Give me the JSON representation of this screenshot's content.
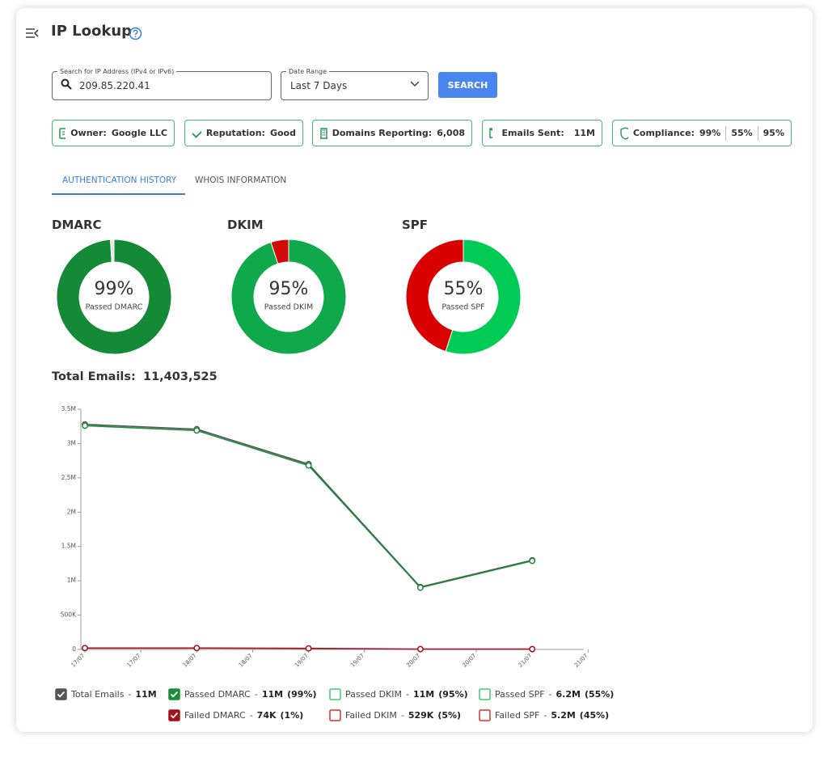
{
  "header": {
    "title": "IP Lookup"
  },
  "search": {
    "ip_label": "Search for IP Address (IPv4 or IPv6)",
    "ip_value": "209.85.220.41",
    "date_label": "Date Range",
    "date_value": "Last 7 Days",
    "button": "SEARCH"
  },
  "badges": [
    {
      "label": "Owner:",
      "value": "Google LLC"
    },
    {
      "label": "Reputation:",
      "value": "Good"
    },
    {
      "label": "Domains Reporting:",
      "value": "6,008"
    },
    {
      "label": "Emails Sent:",
      "value": "11M"
    },
    {
      "label": "Compliance:",
      "values": [
        "99%",
        "55%",
        "95%"
      ]
    }
  ],
  "tabs": [
    "AUTHENTICATION HISTORY",
    "WHOIS INFORMATION"
  ],
  "summary": {
    "label": "Total Emails:",
    "value": "11,403,525"
  },
  "chart_data": [
    {
      "type": "pie",
      "title": "DMARC",
      "center_label": "Passed DMARC",
      "values": [
        99,
        1
      ],
      "value_labels": [
        "99%",
        null
      ],
      "colors": [
        "#148a36",
        "#e6e6e6"
      ]
    },
    {
      "type": "pie",
      "title": "DKIM",
      "center_label": "Passed DKIM",
      "values": [
        95,
        5
      ],
      "value_labels": [
        "95%",
        null
      ],
      "colors": [
        "#0fa84a",
        "#d10a0a"
      ]
    },
    {
      "type": "pie",
      "title": "SPF",
      "center_label": "Passed SPF",
      "values": [
        55,
        45
      ],
      "value_labels": [
        "55%",
        null
      ],
      "colors": [
        "#00cc55",
        "#d90000"
      ]
    },
    {
      "type": "line",
      "categories": [
        "17/07",
        "18/07",
        "19/07",
        "20/07",
        "21/07"
      ],
      "ylim": [
        0,
        3500000
      ],
      "yticks": [
        0,
        {
          "value": 500000,
          "label": "500K"
        },
        {
          "value": 1000000,
          "label": "1M"
        },
        {
          "value": 1500000,
          "label": "1.5M"
        },
        {
          "value": 2000000,
          "label": "2M"
        },
        {
          "value": 2500000,
          "label": "2.5M"
        },
        {
          "value": 3000000,
          "label": "3M"
        },
        {
          "value": 3500000,
          "label": "3.5M"
        }
      ],
      "legend_separator": "-",
      "series": [
        {
          "name": "Total Emails",
          "color": "#555555",
          "checked": true,
          "total": "11M",
          "values": [
            3280000,
            3210000,
            2700000,
            910000,
            1300000
          ]
        },
        {
          "name": "Passed DMARC",
          "color": "#1e8a3c",
          "checked": true,
          "total": "11M",
          "share": "(99%)",
          "values": [
            3260000,
            3190000,
            2680000,
            900000,
            1290000
          ]
        },
        {
          "name": "Passed DKIM",
          "color": "#3ccc6e",
          "checked": false,
          "total": "11M",
          "share": "(95%)"
        },
        {
          "name": "Passed SPF",
          "color": "#3ccc6e",
          "checked": false,
          "total": "6.2M",
          "share": "(55%)"
        },
        {
          "name": "Failed DMARC",
          "color": "#a50e1a",
          "checked": true,
          "total": "74K",
          "share": "(1%)",
          "values": [
            20000,
            20000,
            15000,
            5000,
            5000
          ]
        },
        {
          "name": "Failed DKIM",
          "color": "#d63333",
          "checked": false,
          "total": "529K",
          "share": "(5%)"
        },
        {
          "name": "Failed SPF",
          "color": "#d63333",
          "checked": false,
          "total": "5.2M",
          "share": "(45%)"
        }
      ]
    }
  ]
}
